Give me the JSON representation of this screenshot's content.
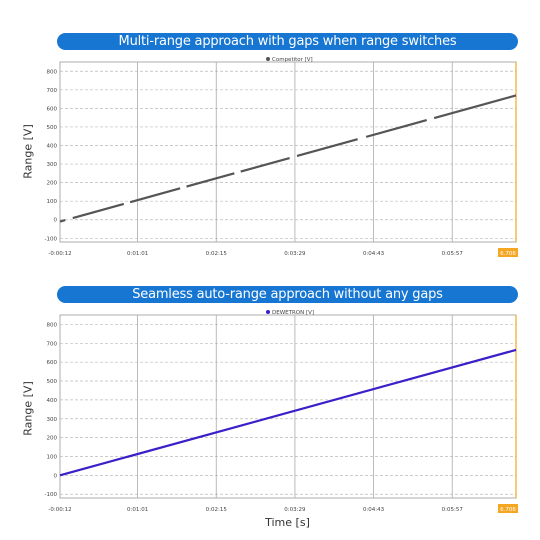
{
  "chart_data": [
    {
      "type": "line",
      "title": "Multi-range approach with gaps when range switches",
      "ylabel": "Range [V]",
      "xlabel": "",
      "legend": "Competitor [V]",
      "legend_placement": "top-center",
      "x_ticks": [
        "-0:00:12",
        "0:01:01",
        "0:02:15",
        "0:03:29",
        "0:04:43",
        "0:05:57",
        "6.706"
      ],
      "x_tick_values": [
        -12,
        61,
        135,
        209,
        283,
        357,
        417
      ],
      "xlim": [
        -12,
        417
      ],
      "y_ticks": [
        -100,
        0,
        100,
        200,
        300,
        400,
        500,
        600,
        700,
        800
      ],
      "ylim": [
        -120,
        850
      ],
      "grid": true,
      "colors": {
        "series": "#555555",
        "cursor": "#f5a623",
        "grid": "#bbbbbb"
      },
      "series": [
        {
          "name": "Competitor [V]",
          "x": [
            -12,
            417
          ],
          "y": [
            -10,
            670
          ],
          "segments": [
            [
              -12,
              -7
            ],
            [
              0,
              48
            ],
            [
              54,
              101
            ],
            [
              107,
              152
            ],
            [
              158,
              204
            ],
            [
              211,
              268
            ],
            [
              276,
              333
            ],
            [
              340,
              417
            ]
          ]
        }
      ]
    },
    {
      "type": "line",
      "title": "Seamless auto-range approach without any gaps",
      "ylabel": "Range [V]",
      "xlabel": "Time [s]",
      "legend": "DEWETRON [V]",
      "legend_placement": "top-center",
      "x_ticks": [
        "-0:00:12",
        "0:01:01",
        "0:02:15",
        "0:03:29",
        "0:04:43",
        "0:05:57",
        "6.706"
      ],
      "x_tick_values": [
        -12,
        61,
        135,
        209,
        283,
        357,
        417
      ],
      "xlim": [
        -12,
        417
      ],
      "y_ticks": [
        -100,
        0,
        100,
        200,
        300,
        400,
        500,
        600,
        700,
        800
      ],
      "ylim": [
        -120,
        850
      ],
      "grid": true,
      "colors": {
        "series": "#3b1fc9",
        "cursor": "#f5a623",
        "grid": "#bbbbbb"
      },
      "series": [
        {
          "name": "DEWETRON [V]",
          "x": [
            -12,
            417
          ],
          "y": [
            0,
            665
          ],
          "segments": [
            [
              -12,
              417
            ]
          ]
        }
      ]
    }
  ]
}
